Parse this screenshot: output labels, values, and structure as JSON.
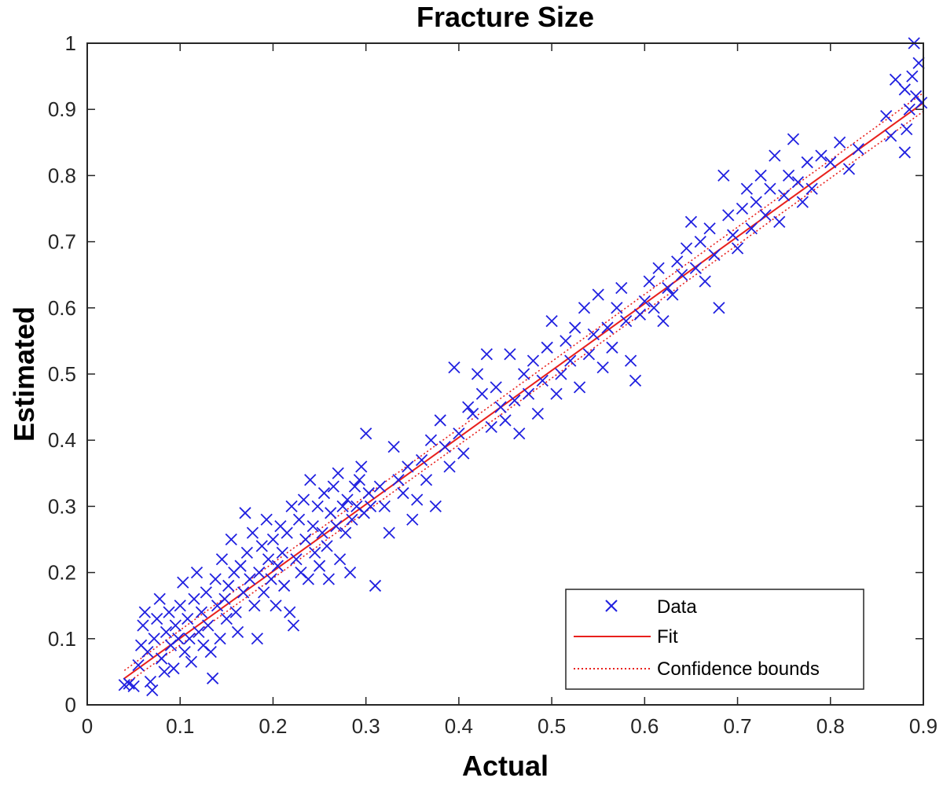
{
  "chart_data": {
    "type": "scatter",
    "title": "Fracture Size",
    "xlabel": "Actual",
    "ylabel": "Estimated",
    "xlim": [
      0,
      0.9
    ],
    "ylim": [
      0,
      1
    ],
    "xticks": [
      0,
      0.1,
      0.2,
      0.3,
      0.4,
      0.5,
      0.6,
      0.7,
      0.8,
      0.9
    ],
    "xtick_labels": [
      "0",
      "0.1",
      "0.2",
      "0.3",
      "0.4",
      "0.5",
      "0.6",
      "0.7",
      "0.8",
      "0.9"
    ],
    "yticks": [
      0,
      0.1,
      0.2,
      0.3,
      0.4,
      0.5,
      0.6,
      0.7,
      0.8,
      0.9,
      1
    ],
    "ytick_labels": [
      "0",
      "0.1",
      "0.2",
      "0.3",
      "0.4",
      "0.5",
      "0.6",
      "0.7",
      "0.8",
      "0.9",
      "1"
    ],
    "grid": false,
    "legend_position": "bottom-right",
    "legend": [
      "Data",
      "Fit",
      "Confidence bounds"
    ],
    "colors": {
      "data": "#2020e0",
      "fit": "#e8201c",
      "bounds": "#e8201c"
    },
    "fit": {
      "x": [
        0.04,
        0.9
      ],
      "y": [
        0.04,
        0.91
      ]
    },
    "confidence_bounds": {
      "upper": {
        "x": [
          0.04,
          0.9
        ],
        "y": [
          0.052,
          0.925
        ]
      },
      "lower": {
        "x": [
          0.04,
          0.9
        ],
        "y": [
          0.03,
          0.897
        ]
      }
    },
    "points": [
      [
        0.04,
        0.03
      ],
      [
        0.045,
        0.032
      ],
      [
        0.05,
        0.028
      ],
      [
        0.055,
        0.06
      ],
      [
        0.058,
        0.09
      ],
      [
        0.06,
        0.12
      ],
      [
        0.062,
        0.14
      ],
      [
        0.065,
        0.08
      ],
      [
        0.068,
        0.035
      ],
      [
        0.07,
        0.022
      ],
      [
        0.072,
        0.1
      ],
      [
        0.075,
        0.13
      ],
      [
        0.078,
        0.16
      ],
      [
        0.08,
        0.07
      ],
      [
        0.083,
        0.05
      ],
      [
        0.085,
        0.11
      ],
      [
        0.088,
        0.14
      ],
      [
        0.09,
        0.09
      ],
      [
        0.093,
        0.055
      ],
      [
        0.095,
        0.12
      ],
      [
        0.098,
        0.1
      ],
      [
        0.1,
        0.15
      ],
      [
        0.103,
        0.185
      ],
      [
        0.105,
        0.08
      ],
      [
        0.108,
        0.13
      ],
      [
        0.11,
        0.1
      ],
      [
        0.112,
        0.065
      ],
      [
        0.115,
        0.16
      ],
      [
        0.118,
        0.2
      ],
      [
        0.12,
        0.11
      ],
      [
        0.123,
        0.14
      ],
      [
        0.125,
        0.09
      ],
      [
        0.128,
        0.17
      ],
      [
        0.13,
        0.12
      ],
      [
        0.133,
        0.08
      ],
      [
        0.135,
        0.04
      ],
      [
        0.138,
        0.19
      ],
      [
        0.14,
        0.15
      ],
      [
        0.143,
        0.1
      ],
      [
        0.145,
        0.22
      ],
      [
        0.148,
        0.16
      ],
      [
        0.15,
        0.13
      ],
      [
        0.152,
        0.18
      ],
      [
        0.155,
        0.25
      ],
      [
        0.158,
        0.2
      ],
      [
        0.16,
        0.14
      ],
      [
        0.162,
        0.11
      ],
      [
        0.165,
        0.21
      ],
      [
        0.168,
        0.17
      ],
      [
        0.17,
        0.29
      ],
      [
        0.172,
        0.23
      ],
      [
        0.175,
        0.19
      ],
      [
        0.178,
        0.26
      ],
      [
        0.18,
        0.15
      ],
      [
        0.183,
        0.1
      ],
      [
        0.185,
        0.2
      ],
      [
        0.188,
        0.24
      ],
      [
        0.19,
        0.17
      ],
      [
        0.193,
        0.28
      ],
      [
        0.195,
        0.22
      ],
      [
        0.198,
        0.19
      ],
      [
        0.2,
        0.25
      ],
      [
        0.203,
        0.15
      ],
      [
        0.205,
        0.21
      ],
      [
        0.208,
        0.27
      ],
      [
        0.21,
        0.23
      ],
      [
        0.212,
        0.18
      ],
      [
        0.215,
        0.26
      ],
      [
        0.218,
        0.14
      ],
      [
        0.22,
        0.3
      ],
      [
        0.222,
        0.12
      ],
      [
        0.225,
        0.22
      ],
      [
        0.228,
        0.28
      ],
      [
        0.23,
        0.2
      ],
      [
        0.233,
        0.31
      ],
      [
        0.235,
        0.25
      ],
      [
        0.238,
        0.19
      ],
      [
        0.24,
        0.34
      ],
      [
        0.243,
        0.27
      ],
      [
        0.245,
        0.23
      ],
      [
        0.248,
        0.3
      ],
      [
        0.25,
        0.21
      ],
      [
        0.253,
        0.26
      ],
      [
        0.255,
        0.32
      ],
      [
        0.258,
        0.24
      ],
      [
        0.26,
        0.19
      ],
      [
        0.262,
        0.29
      ],
      [
        0.265,
        0.33
      ],
      [
        0.268,
        0.27
      ],
      [
        0.27,
        0.35
      ],
      [
        0.272,
        0.22
      ],
      [
        0.275,
        0.3
      ],
      [
        0.278,
        0.26
      ],
      [
        0.28,
        0.31
      ],
      [
        0.283,
        0.2
      ],
      [
        0.285,
        0.28
      ],
      [
        0.288,
        0.33
      ],
      [
        0.29,
        0.3
      ],
      [
        0.293,
        0.34
      ],
      [
        0.295,
        0.36
      ],
      [
        0.298,
        0.29
      ],
      [
        0.3,
        0.41
      ],
      [
        0.303,
        0.32
      ],
      [
        0.305,
        0.3
      ],
      [
        0.31,
        0.18
      ],
      [
        0.315,
        0.33
      ],
      [
        0.32,
        0.3
      ],
      [
        0.325,
        0.26
      ],
      [
        0.33,
        0.39
      ],
      [
        0.335,
        0.34
      ],
      [
        0.34,
        0.32
      ],
      [
        0.345,
        0.36
      ],
      [
        0.35,
        0.28
      ],
      [
        0.355,
        0.31
      ],
      [
        0.36,
        0.37
      ],
      [
        0.365,
        0.34
      ],
      [
        0.37,
        0.4
      ],
      [
        0.375,
        0.3
      ],
      [
        0.38,
        0.43
      ],
      [
        0.385,
        0.39
      ],
      [
        0.39,
        0.36
      ],
      [
        0.395,
        0.51
      ],
      [
        0.4,
        0.41
      ],
      [
        0.405,
        0.38
      ],
      [
        0.41,
        0.45
      ],
      [
        0.415,
        0.44
      ],
      [
        0.42,
        0.5
      ],
      [
        0.425,
        0.47
      ],
      [
        0.43,
        0.53
      ],
      [
        0.435,
        0.42
      ],
      [
        0.44,
        0.48
      ],
      [
        0.445,
        0.45
      ],
      [
        0.45,
        0.43
      ],
      [
        0.455,
        0.53
      ],
      [
        0.46,
        0.46
      ],
      [
        0.465,
        0.41
      ],
      [
        0.47,
        0.5
      ],
      [
        0.475,
        0.47
      ],
      [
        0.48,
        0.52
      ],
      [
        0.485,
        0.44
      ],
      [
        0.49,
        0.49
      ],
      [
        0.495,
        0.54
      ],
      [
        0.5,
        0.58
      ],
      [
        0.505,
        0.47
      ],
      [
        0.51,
        0.5
      ],
      [
        0.515,
        0.55
      ],
      [
        0.52,
        0.52
      ],
      [
        0.525,
        0.57
      ],
      [
        0.53,
        0.48
      ],
      [
        0.535,
        0.6
      ],
      [
        0.54,
        0.53
      ],
      [
        0.545,
        0.56
      ],
      [
        0.55,
        0.62
      ],
      [
        0.555,
        0.51
      ],
      [
        0.56,
        0.57
      ],
      [
        0.565,
        0.54
      ],
      [
        0.57,
        0.6
      ],
      [
        0.575,
        0.63
      ],
      [
        0.58,
        0.58
      ],
      [
        0.585,
        0.52
      ],
      [
        0.59,
        0.49
      ],
      [
        0.595,
        0.59
      ],
      [
        0.6,
        0.61
      ],
      [
        0.605,
        0.64
      ],
      [
        0.61,
        0.6
      ],
      [
        0.615,
        0.66
      ],
      [
        0.62,
        0.58
      ],
      [
        0.625,
        0.63
      ],
      [
        0.63,
        0.62
      ],
      [
        0.635,
        0.67
      ],
      [
        0.64,
        0.65
      ],
      [
        0.645,
        0.69
      ],
      [
        0.65,
        0.73
      ],
      [
        0.655,
        0.66
      ],
      [
        0.66,
        0.7
      ],
      [
        0.665,
        0.64
      ],
      [
        0.67,
        0.72
      ],
      [
        0.675,
        0.68
      ],
      [
        0.68,
        0.6
      ],
      [
        0.685,
        0.8
      ],
      [
        0.69,
        0.74
      ],
      [
        0.695,
        0.71
      ],
      [
        0.7,
        0.69
      ],
      [
        0.705,
        0.75
      ],
      [
        0.71,
        0.78
      ],
      [
        0.715,
        0.72
      ],
      [
        0.72,
        0.76
      ],
      [
        0.725,
        0.8
      ],
      [
        0.73,
        0.74
      ],
      [
        0.735,
        0.78
      ],
      [
        0.74,
        0.83
      ],
      [
        0.745,
        0.73
      ],
      [
        0.75,
        0.77
      ],
      [
        0.755,
        0.8
      ],
      [
        0.76,
        0.855
      ],
      [
        0.765,
        0.79
      ],
      [
        0.77,
        0.76
      ],
      [
        0.775,
        0.82
      ],
      [
        0.78,
        0.78
      ],
      [
        0.79,
        0.83
      ],
      [
        0.8,
        0.82
      ],
      [
        0.81,
        0.85
      ],
      [
        0.82,
        0.81
      ],
      [
        0.83,
        0.84
      ],
      [
        0.865,
        0.86
      ],
      [
        0.87,
        0.945
      ],
      [
        0.88,
        0.835
      ],
      [
        0.882,
        0.87
      ],
      [
        0.885,
        0.9
      ],
      [
        0.888,
        0.95
      ],
      [
        0.89,
        1.0
      ],
      [
        0.892,
        0.92
      ],
      [
        0.895,
        0.97
      ],
      [
        0.898,
        0.91
      ],
      [
        0.88,
        0.93
      ],
      [
        0.86,
        0.89
      ]
    ]
  }
}
